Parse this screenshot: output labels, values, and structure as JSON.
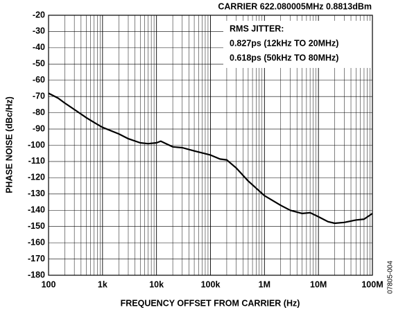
{
  "chart_data": {
    "type": "line",
    "title": "CARRIER 622.080005MHz   0.8813dBm",
    "annotations": [
      "RMS JITTER:",
      "0.827ps (12kHz TO 20MHz)",
      "0.618ps (50kHz TO 80MHz)"
    ],
    "figure_id": "07805-004",
    "xlabel": "FREQUENCY OFFSET FROM CARRIER (Hz)",
    "ylabel": "PHASE NOISE (dBc/Hz)",
    "xscale": "log",
    "grid": true,
    "color": "#000000",
    "x": [
      100,
      150,
      200,
      300,
      500,
      700,
      1000,
      2000,
      3000,
      5000,
      7000,
      10000,
      12000,
      15000,
      20000,
      30000,
      50000,
      100000,
      150000,
      200000,
      300000,
      500000,
      1000000,
      2000000,
      3000000,
      5000000,
      7000000,
      10000000,
      15000000,
      20000000,
      30000000,
      50000000,
      70000000,
      100000000
    ],
    "values": [
      -68,
      -71,
      -74,
      -78,
      -83,
      -86,
      -89,
      -93,
      -96,
      -98.5,
      -99,
      -98.5,
      -97.5,
      -99,
      -101,
      -101.5,
      -103.5,
      -106,
      -108.5,
      -109,
      -114,
      -122,
      -131,
      -137,
      -140,
      -142,
      -141.5,
      -144,
      -147,
      -148,
      -147.5,
      -146,
      -145.5,
      -142
    ],
    "xlim": [
      100,
      100000000
    ],
    "xticks": [
      100,
      {
        "value": 1000,
        "label": "1k"
      },
      {
        "value": 10000,
        "label": "10k"
      },
      {
        "value": 100000,
        "label": "100k"
      },
      {
        "value": 1000000,
        "label": "1M"
      },
      {
        "value": 10000000,
        "label": "10M"
      },
      {
        "value": 100000000,
        "label": "100M"
      }
    ],
    "ylim": [
      -180,
      -20
    ],
    "yticks": [
      -20,
      -30,
      -40,
      -50,
      -60,
      -70,
      -80,
      -90,
      -100,
      -110,
      -120,
      -130,
      -140,
      -150,
      -160,
      -170,
      -180
    ]
  }
}
